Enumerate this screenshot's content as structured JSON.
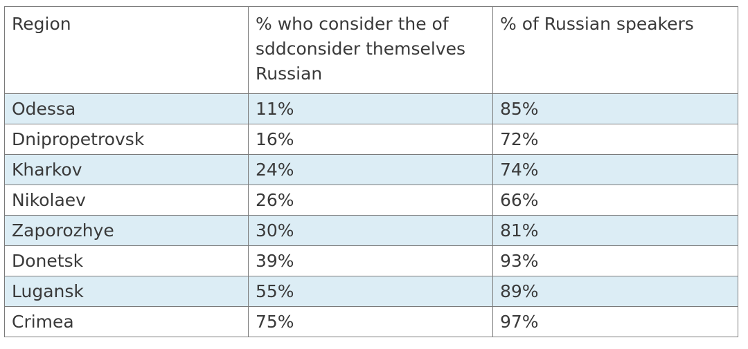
{
  "table": {
    "headers": [
      "Region",
      "% who consider the of sddconsider themselves Russian",
      "% of Russian speakers"
    ],
    "rows": [
      [
        "Odessa",
        "11%",
        "85%"
      ],
      [
        "Dnipropetrovsk",
        "16%",
        "72%"
      ],
      [
        "Kharkov",
        "24%",
        "74%"
      ],
      [
        "Nikolaev",
        "26%",
        "66%"
      ],
      [
        "Zaporozhye",
        "30%",
        "81%"
      ],
      [
        "Donetsk",
        "39%",
        "93%"
      ],
      [
        "Lugansk",
        "55%",
        "89%"
      ],
      [
        "Crimea",
        "75%",
        "97%"
      ]
    ],
    "shaded_row_color": "#dcedf5",
    "border_color": "#7a7a7a",
    "text_color": "#3a3a3a"
  }
}
